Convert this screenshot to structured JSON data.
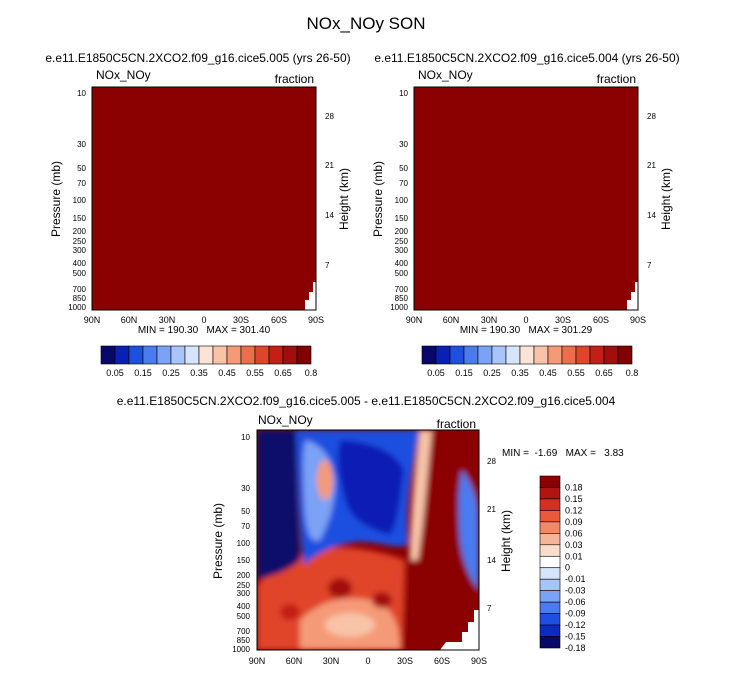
{
  "chart_data": {
    "type": "heatmap",
    "title": "NOx_NOy SON",
    "panels": [
      {
        "id": "case1",
        "subtitle": "e.e11.E1850C5CN.2XCO2.f09_g16.cice5.005 (yrs 26-50)",
        "left_label": "NOx_NOy",
        "right_label": "fraction",
        "ylabel_left": "Pressure (mb)",
        "ylabel_right": "Height (km)",
        "x_ticks": [
          "90N",
          "60N",
          "30N",
          "0",
          "30S",
          "60S",
          "90S"
        ],
        "p_ticks": [
          "10",
          "30",
          "50",
          "70",
          "100",
          "150",
          "200",
          "250",
          "300",
          "400",
          "500",
          "700",
          "850",
          "1000"
        ],
        "km_ticks": [
          "28",
          "21",
          "14",
          "7"
        ],
        "minmax": "MIN = 190.30   MAX = 301.40",
        "fill_color": "#8b0000"
      },
      {
        "id": "case2",
        "subtitle": "e.e11.E1850C5CN.2XCO2.f09_g16.cice5.004 (yrs 26-50)",
        "left_label": "NOx_NOy",
        "right_label": "fraction",
        "ylabel_left": "Pressure (mb)",
        "ylabel_right": "Height (km)",
        "x_ticks": [
          "90N",
          "60N",
          "30N",
          "0",
          "30S",
          "60S",
          "90S"
        ],
        "p_ticks": [
          "10",
          "30",
          "50",
          "70",
          "100",
          "150",
          "200",
          "250",
          "300",
          "400",
          "500",
          "700",
          "850",
          "1000"
        ],
        "km_ticks": [
          "28",
          "21",
          "14",
          "7"
        ],
        "minmax": "MIN = 190.30   MAX = 301.29",
        "fill_color": "#8b0000"
      },
      {
        "id": "diff",
        "subtitle": "e.e11.E1850C5CN.2XCO2.f09_g16.cice5.005 - e.e11.E1850C5CN.2XCO2.f09_g16.cice5.004",
        "left_label": "NOx_NOy",
        "right_label": "fraction",
        "ylabel_left": "Pressure (mb)",
        "ylabel_right": "Height (km)",
        "x_ticks": [
          "90N",
          "60N",
          "30N",
          "0",
          "30S",
          "60S",
          "90S"
        ],
        "p_ticks": [
          "10",
          "30",
          "50",
          "70",
          "100",
          "150",
          "200",
          "250",
          "300",
          "400",
          "500",
          "700",
          "850",
          "1000"
        ],
        "km_ticks": [
          "28",
          "21",
          "14",
          "7"
        ],
        "minmax": "MIN =  -1.69   MAX =   3.83"
      }
    ],
    "colorbar_main": {
      "orientation": "horizontal",
      "colors": [
        "#08086b",
        "#0a1fb5",
        "#1f4fe0",
        "#4a7cf0",
        "#7ca2f5",
        "#a9c4f8",
        "#d6e4fb",
        "#fbe3d6",
        "#f8c3a7",
        "#f59a77",
        "#ee6d4c",
        "#e0442b",
        "#c41e17",
        "#a40d0d",
        "#820000"
      ],
      "labels": [
        "0.05",
        "0.15",
        "0.25",
        "0.35",
        "0.45",
        "0.55",
        "0.65",
        "0.8"
      ]
    },
    "colorbar_diff": {
      "orientation": "vertical",
      "colors": [
        "#8b0000",
        "#b11512",
        "#d5301f",
        "#ea5a3a",
        "#f3876a",
        "#f8b498",
        "#fbdccb",
        "#ffffff",
        "#d6e4fb",
        "#a9c4f8",
        "#7ca2f5",
        "#4a7cf0",
        "#1f4fe0",
        "#0a2cc0",
        "#08086b"
      ],
      "labels": [
        "0.18",
        "0.15",
        "0.12",
        "0.09",
        "0.06",
        "0.03",
        "0.01",
        "0",
        "-0.01",
        "-0.03",
        "-0.06",
        "-0.09",
        "-0.12",
        "-0.15",
        "-0.18"
      ]
    }
  }
}
